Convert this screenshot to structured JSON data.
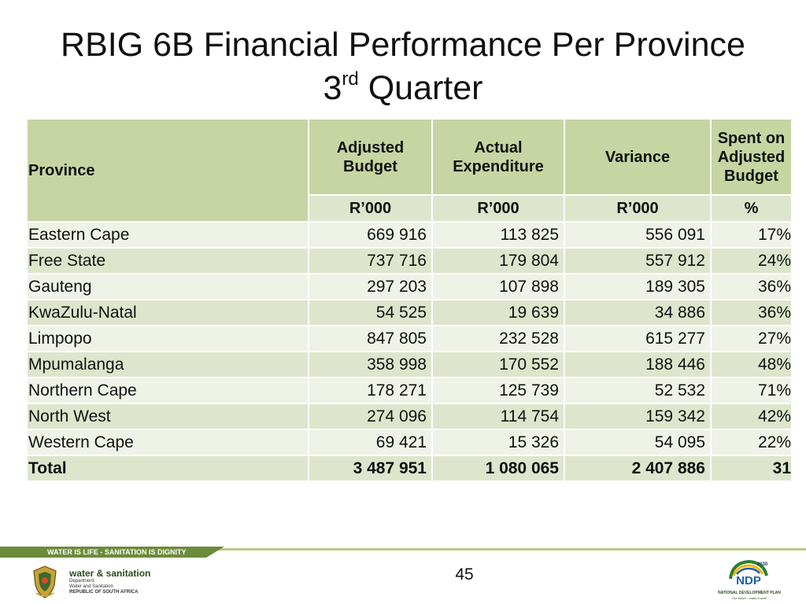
{
  "slide": {
    "title_line1": "RBIG 6B Financial Performance Per Province",
    "title_line2_base": "3",
    "title_line2_sup": "rd",
    "title_line2_rest": " Quarter",
    "page_number": "45"
  },
  "table": {
    "headers": {
      "province": "Province",
      "adjusted_budget": "Adjusted Budget",
      "actual_expenditure": "Actual Expenditure",
      "variance": "Variance",
      "spent_on_adjusted_budget": "Spent on Adjusted Budget"
    },
    "units": [
      "R’000",
      "R’000",
      "R’000",
      "%"
    ],
    "rows": [
      {
        "province": "Eastern Cape",
        "adjusted_budget": "669 916",
        "actual_expenditure": "113 825",
        "variance": "556 091",
        "spent": "17%"
      },
      {
        "province": "Free State",
        "adjusted_budget": "737 716",
        "actual_expenditure": "179 804",
        "variance": "557 912",
        "spent": "24%"
      },
      {
        "province": "Gauteng",
        "adjusted_budget": "297 203",
        "actual_expenditure": "107 898",
        "variance": "189 305",
        "spent": "36%"
      },
      {
        "province": "KwaZulu-Natal",
        "adjusted_budget": "54 525",
        "actual_expenditure": "19 639",
        "variance": "34 886",
        "spent": "36%"
      },
      {
        "province": "Limpopo",
        "adjusted_budget": "847 805",
        "actual_expenditure": "232 528",
        "variance": "615 277",
        "spent": "27%"
      },
      {
        "province": "Mpumalanga",
        "adjusted_budget": "358 998",
        "actual_expenditure": "170 552",
        "variance": "188 446",
        "spent": "48%"
      },
      {
        "province": "Northern Cape",
        "adjusted_budget": "178 271",
        "actual_expenditure": "125 739",
        "variance": "52 532",
        "spent": "71%"
      },
      {
        "province": "North West",
        "adjusted_budget": "274 096",
        "actual_expenditure": "114 754",
        "variance": "159 342",
        "spent": "42%"
      },
      {
        "province": "Western Cape",
        "adjusted_budget": "69 421",
        "actual_expenditure": "15 326",
        "variance": "54 095",
        "spent": "22%"
      }
    ],
    "total": {
      "province": "Total",
      "adjusted_budget": "3 487 951",
      "actual_expenditure": "1 080 065",
      "variance": "2 407 886",
      "spent": "31"
    }
  },
  "footer": {
    "banner_text": "WATER IS LIFE - SANITATION IS DIGNITY",
    "dept_title": "water & sanitation",
    "dept_line1": "Department:",
    "dept_line2": "Water and Sanitation",
    "dept_line3": "REPUBLIC OF SOUTH AFRICA",
    "ndp_year": "2030",
    "ndp_name": "NDP",
    "ndp_line1": "NATIONAL DEVELOPMENT PLAN",
    "ndp_line2": "Our future - make it work"
  },
  "colors": {
    "header_green": "#c6d5a1",
    "row_light": "#eef2e7",
    "row_dark": "#dde6cc",
    "banner_green": "#6b8c3a"
  },
  "icons": [
    "coat-of-arms-logo",
    "ndp-logo"
  ]
}
